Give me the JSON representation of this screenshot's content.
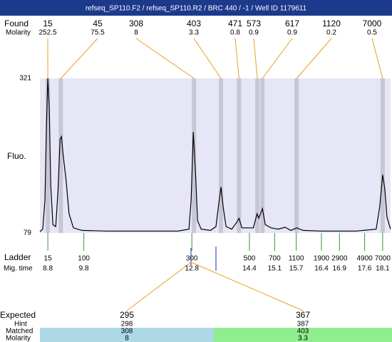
{
  "header": {
    "title": "refseq_SP110.F2 / refseq_SP110.R2 / BRC 440 / -1 / Well ID 1179611"
  },
  "chart_data": {
    "type": "line",
    "y_label": "Fluo.",
    "ylim": [
      79,
      321
    ],
    "yticks": [
      79,
      321
    ],
    "xlim": [
      8.58,
      18.32
    ],
    "x": [
      8.58,
      8.66,
      8.72,
      8.76,
      8.8,
      8.84,
      8.88,
      8.94,
      9.02,
      9.08,
      9.14,
      9.18,
      9.22,
      9.3,
      9.39,
      9.51,
      9.75,
      10.44,
      11.43,
      12.42,
      12.72,
      12.78,
      12.84,
      12.9,
      12.96,
      13.06,
      13.32,
      13.47,
      13.55,
      13.61,
      13.67,
      13.75,
      13.91,
      14.05,
      14.11,
      14.19,
      14.51,
      14.61,
      14.66,
      14.76,
      14.84,
      15.0,
      15.2,
      15.39,
      15.55,
      15.71,
      15.89,
      16.38,
      17.37,
      17.92,
      18.02,
      18.1,
      18.16,
      18.22,
      18.32
    ],
    "series": [
      {
        "color": "#000000",
        "values": [
          81,
          85,
          131,
          243,
          321,
          276,
          154,
          92,
          89,
          143,
          226,
          230,
          204,
          165,
          109,
          87,
          83,
          82,
          82,
          82,
          85,
          131,
          237,
          176,
          98,
          85,
          83,
          89,
          126,
          151,
          120,
          89,
          85,
          96,
          102,
          87,
          87,
          109,
          102,
          117,
          92,
          87,
          85,
          88,
          83,
          87,
          83,
          82,
          82,
          85,
          120,
          170,
          148,
          104,
          85
        ]
      }
    ],
    "found": {
      "label": "Found",
      "molarity_label": "Molarity",
      "sizes": [
        15,
        45,
        308,
        403,
        471,
        573,
        617,
        1120,
        7000
      ],
      "molarities": [
        252.5,
        75.5,
        8,
        3.3,
        0.8,
        0.9,
        0.9,
        0.2,
        0.5
      ],
      "times": [
        8.8,
        9.16,
        12.86,
        13.61,
        14.11,
        14.62,
        14.76,
        15.71,
        18.1
      ]
    },
    "ladder": {
      "label": "Ladder",
      "time_label": "Mig. time",
      "sizes": [
        15,
        100,
        300,
        500,
        700,
        1100,
        1900,
        2900,
        4900,
        7000
      ],
      "times": [
        8.8,
        9.8,
        12.8,
        14.4,
        15.1,
        15.7,
        16.4,
        16.9,
        17.6,
        18.1
      ]
    }
  },
  "expected": {
    "label": "Expected",
    "hint_label": "Hint",
    "matched_label": "Matched",
    "molarity_label": "Molarity",
    "columns": [
      {
        "expected": 295,
        "hint": 298,
        "matched": 308,
        "molarity": 8
      },
      {
        "expected": 367,
        "hint": 387,
        "matched": 403,
        "molarity": 3.3
      }
    ]
  }
}
